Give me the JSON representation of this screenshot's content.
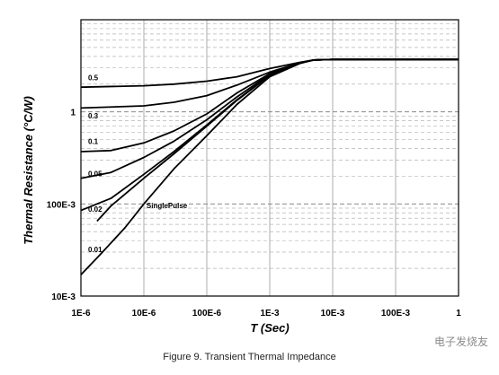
{
  "caption": "Figure 9. Transient Thermal Impedance",
  "watermark": "电子发烧友",
  "chart_data": {
    "type": "line",
    "xlabel": "T (Sec)",
    "ylabel": "Thermal Resistance (°C/W)",
    "x_scale": "log",
    "y_scale": "log",
    "xlim": [
      1e-06,
      1
    ],
    "ylim": [
      0.01,
      10
    ],
    "x_ticks": [
      {
        "value": 1e-06,
        "label": "1E-6"
      },
      {
        "value": 1e-05,
        "label": "10E-6"
      },
      {
        "value": 0.0001,
        "label": "100E-6"
      },
      {
        "value": 0.001,
        "label": "1E-3"
      },
      {
        "value": 0.01,
        "label": "10E-3"
      },
      {
        "value": 0.1,
        "label": "100E-3"
      },
      {
        "value": 1,
        "label": "1"
      }
    ],
    "y_ticks": [
      {
        "value": 0.01,
        "label": "10E-3"
      },
      {
        "value": 0.1,
        "label": "100E-3"
      },
      {
        "value": 1,
        "label": "1"
      }
    ],
    "grid": true,
    "series": [
      {
        "name": "0.5",
        "label_at": [
          1.3e-06,
          2.2
        ],
        "points": [
          [
            1e-06,
            1.85
          ],
          [
            1e-05,
            1.92
          ],
          [
            3e-05,
            2.0
          ],
          [
            0.0001,
            2.15
          ],
          [
            0.0003,
            2.4
          ],
          [
            0.001,
            2.95
          ],
          [
            0.003,
            3.45
          ],
          [
            0.005,
            3.65
          ],
          [
            0.01,
            3.7
          ],
          [
            0.1,
            3.7
          ],
          [
            1,
            3.7
          ]
        ]
      },
      {
        "name": "0.3",
        "label_at": [
          1.3e-06,
          0.85
        ],
        "points": [
          [
            1e-06,
            1.1
          ],
          [
            1e-05,
            1.16
          ],
          [
            3e-05,
            1.27
          ],
          [
            0.0001,
            1.5
          ],
          [
            0.0003,
            1.95
          ],
          [
            0.001,
            2.7
          ],
          [
            0.003,
            3.4
          ],
          [
            0.005,
            3.65
          ],
          [
            0.01,
            3.7
          ],
          [
            0.1,
            3.7
          ],
          [
            1,
            3.7
          ]
        ]
      },
      {
        "name": "0.1",
        "label_at": [
          1.3e-06,
          0.45
        ],
        "points": [
          [
            1e-06,
            0.37
          ],
          [
            3e-06,
            0.38
          ],
          [
            1e-05,
            0.46
          ],
          [
            3e-05,
            0.62
          ],
          [
            0.0001,
            0.95
          ],
          [
            0.0003,
            1.6
          ],
          [
            0.001,
            2.6
          ],
          [
            0.003,
            3.4
          ],
          [
            0.005,
            3.65
          ],
          [
            0.01,
            3.7
          ],
          [
            0.1,
            3.7
          ],
          [
            1,
            3.7
          ]
        ]
      },
      {
        "name": "0.05",
        "label_at": [
          1.3e-06,
          0.2
        ],
        "points": [
          [
            1e-06,
            0.19
          ],
          [
            3e-06,
            0.22
          ],
          [
            1e-05,
            0.32
          ],
          [
            3e-05,
            0.48
          ],
          [
            0.0001,
            0.82
          ],
          [
            0.0003,
            1.45
          ],
          [
            0.001,
            2.55
          ],
          [
            0.003,
            3.4
          ],
          [
            0.005,
            3.65
          ],
          [
            0.01,
            3.7
          ],
          [
            0.1,
            3.7
          ],
          [
            1,
            3.7
          ]
        ]
      },
      {
        "name": "0.02",
        "label_at": [
          1.3e-06,
          0.082
        ],
        "points": [
          [
            1e-06,
            0.085
          ],
          [
            3e-06,
            0.115
          ],
          [
            1e-05,
            0.21
          ],
          [
            3e-05,
            0.37
          ],
          [
            0.0001,
            0.72
          ],
          [
            0.0003,
            1.35
          ],
          [
            0.001,
            2.5
          ],
          [
            0.003,
            3.4
          ],
          [
            0.005,
            3.65
          ],
          [
            0.01,
            3.7
          ],
          [
            0.1,
            3.7
          ],
          [
            1,
            3.7
          ]
        ]
      },
      {
        "name": "0.01",
        "label_at": [
          1.3e-06,
          0.03
        ],
        "points": [
          [
            1.8e-06,
            0.065
          ],
          [
            3e-06,
            0.095
          ],
          [
            1e-05,
            0.19
          ],
          [
            3e-05,
            0.35
          ],
          [
            0.0001,
            0.7
          ],
          [
            0.0003,
            1.33
          ],
          [
            0.001,
            2.48
          ],
          [
            0.003,
            3.4
          ],
          [
            0.005,
            3.65
          ],
          [
            0.01,
            3.7
          ],
          [
            0.1,
            3.7
          ],
          [
            1,
            3.7
          ]
        ]
      },
      {
        "name": "SinglePulse",
        "label_at": [
          1.1e-05,
          0.09
        ],
        "points": [
          [
            1e-06,
            0.017
          ],
          [
            2e-06,
            0.028
          ],
          [
            5e-06,
            0.055
          ],
          [
            1e-05,
            0.1
          ],
          [
            3e-05,
            0.24
          ],
          [
            0.0001,
            0.55
          ],
          [
            0.0003,
            1.2
          ],
          [
            0.001,
            2.4
          ],
          [
            0.003,
            3.35
          ],
          [
            0.005,
            3.65
          ],
          [
            0.01,
            3.7
          ],
          [
            0.1,
            3.7
          ],
          [
            1,
            3.7
          ]
        ]
      }
    ]
  }
}
